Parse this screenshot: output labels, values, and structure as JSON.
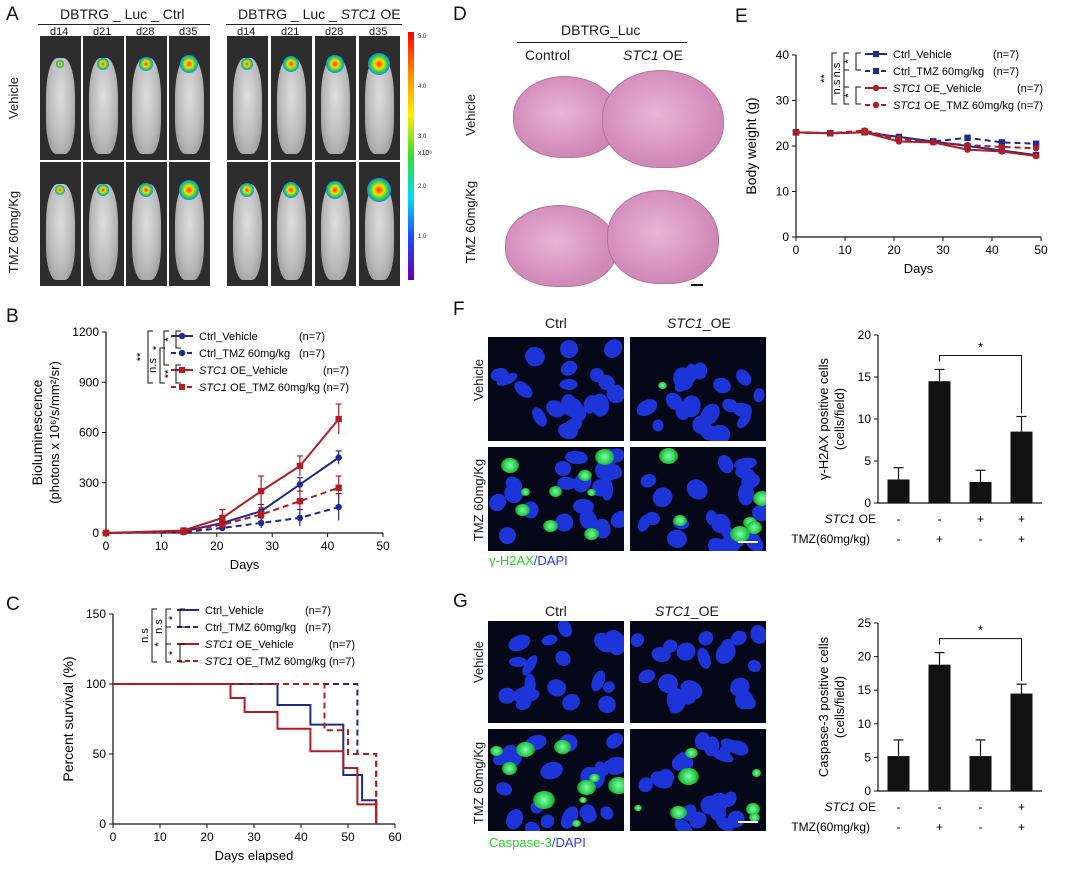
{
  "panels": {
    "A": {
      "label": "A",
      "groups": [
        "DBTRG _ Luc _ Ctrl",
        "DBTRG _ Luc _ ",
        "STC1",
        " OE"
      ],
      "days": [
        "d14",
        "d21",
        "d28",
        "d35",
        "d14",
        "d21",
        "d28",
        "d35"
      ],
      "rows": [
        "Vehicle",
        "TMZ 60mg/Kg"
      ],
      "scale_ticks": [
        "5.0",
        "4.0",
        "3.0",
        "2.0",
        "1.0"
      ],
      "scale_unit": "x10⁶"
    },
    "B": {
      "label": "B"
    },
    "C": {
      "label": "C"
    },
    "D": {
      "label": "D",
      "title": "DBTRG_Luc",
      "cols": [
        "Control",
        "STC1",
        " OE"
      ],
      "rows": [
        "Vehicle",
        "TMZ 60mg/Kg"
      ]
    },
    "E": {
      "label": "E"
    },
    "F": {
      "label": "F",
      "cols": [
        "Ctrl",
        "STC1",
        "_OE"
      ],
      "rows": [
        "Vehicle",
        "TMZ 60mg/Kg"
      ],
      "stain_a": "γ-H2AX",
      "stain_b": "/DAPI"
    },
    "G": {
      "label": "G",
      "cols": [
        "Ctrl",
        "STC1",
        "_OE"
      ],
      "rows": [
        "Vehicle",
        "TMZ 60mg/Kg"
      ],
      "stain_a": "Caspase-3",
      "stain_b": "/DAPI"
    }
  },
  "significance": {
    "dstar": "**",
    "star": "*",
    "ns": "n.s"
  },
  "chart_data": [
    {
      "id": "B",
      "type": "line",
      "xlabel": "Days",
      "ylabel": "Bioluminescence",
      "ylabel2": "(photons x 10⁶/s/mm²/sr)",
      "xlim": [
        0,
        50
      ],
      "ylim": [
        0,
        1200
      ],
      "xticks": [
        "0",
        "10",
        "20",
        "30",
        "40",
        "50"
      ],
      "yticks": [
        "0",
        "300",
        "600",
        "900",
        "1200"
      ],
      "x": [
        0,
        14,
        21,
        28,
        35,
        42
      ],
      "series": [
        {
          "name": "Ctrl_Vehicle",
          "n": "(n=7)",
          "color": "#1f2a8c",
          "dash": false,
          "marker": "circle",
          "values": [
            0,
            10,
            60,
            130,
            290,
            450
          ],
          "err": [
            0,
            5,
            20,
            40,
            40,
            40
          ]
        },
        {
          "name": "Ctrl_TMZ 60mg/kg",
          "n": "(n=7)",
          "color": "#1f2a8c",
          "dash": true,
          "marker": "circle",
          "values": [
            0,
            5,
            30,
            60,
            90,
            155
          ],
          "err": [
            0,
            3,
            15,
            30,
            50,
            80
          ]
        },
        {
          "name": "STC1 OE_Vehicle",
          "n": "(n=7)",
          "color": "#b01e24",
          "dash": false,
          "marker": "square",
          "values": [
            0,
            15,
            90,
            250,
            400,
            680
          ],
          "err": [
            0,
            8,
            50,
            90,
            60,
            90
          ]
        },
        {
          "name": "STC1 OE_TMZ 60mg/kg",
          "n": "(n=7)",
          "color": "#b01e24",
          "dash": true,
          "marker": "square",
          "values": [
            0,
            8,
            50,
            110,
            190,
            270
          ],
          "err": [
            0,
            5,
            25,
            40,
            60,
            70
          ]
        }
      ]
    },
    {
      "id": "C",
      "type": "line",
      "xlabel": "Days elapsed",
      "ylabel": "Percent survival (%)",
      "xlim": [
        0,
        60
      ],
      "ylim": [
        0,
        150
      ],
      "xticks": [
        "0",
        "10",
        "20",
        "30",
        "40",
        "50",
        "60"
      ],
      "yticks": [
        "0",
        "50",
        "100",
        "150"
      ],
      "series": [
        {
          "name": "Ctrl_Vehicle",
          "n": "(n=7)",
          "color": "#1f2a8c",
          "dash": false,
          "x": [
            0,
            35,
            35,
            42,
            42,
            49,
            49,
            53,
            53,
            56,
            56
          ],
          "values": [
            100,
            100,
            85,
            85,
            71,
            71,
            35,
            35,
            17,
            17,
            0
          ]
        },
        {
          "name": "Ctrl_TMZ 60mg/kg",
          "n": "(n=7)",
          "color": "#1f2a8c",
          "dash": true,
          "x": [
            0,
            52,
            52,
            56,
            56
          ],
          "values": [
            100,
            100,
            50,
            50,
            0
          ]
        },
        {
          "name": "STC1 OE_Vehicle",
          "n": "(n=7)",
          "color": "#b01e24",
          "dash": false,
          "x": [
            0,
            25,
            25,
            28,
            28,
            35,
            35,
            42,
            42,
            49,
            49,
            52,
            52,
            56,
            56
          ],
          "values": [
            100,
            100,
            90,
            90,
            80,
            80,
            68,
            68,
            52,
            52,
            40,
            40,
            14,
            14,
            0
          ]
        },
        {
          "name": "STC1 OE_TMZ 60mg/kg",
          "n": "(n=7)",
          "color": "#b01e24",
          "dash": true,
          "x": [
            0,
            45,
            45,
            50,
            50,
            56,
            56
          ],
          "values": [
            100,
            100,
            67,
            67,
            50,
            50,
            0
          ]
        }
      ]
    },
    {
      "id": "E",
      "type": "line",
      "xlabel": "Days",
      "ylabel": "Body weight (g)",
      "xlim": [
        0,
        50
      ],
      "ylim": [
        0,
        40
      ],
      "xticks": [
        "0",
        "10",
        "20",
        "30",
        "40",
        "50"
      ],
      "yticks": [
        "0",
        "10",
        "20",
        "30",
        "40"
      ],
      "x": [
        0,
        7,
        14,
        21,
        28,
        35,
        42,
        49
      ],
      "series": [
        {
          "name": "Ctrl_Vehicle",
          "n": "(n=7)",
          "color": "#1f2a8c",
          "dash": false,
          "marker": "square",
          "values": [
            23,
            22.8,
            23,
            22,
            21,
            20,
            19,
            18
          ]
        },
        {
          "name": "Ctrl_TMZ 60mg/kg",
          "n": "(n=7)",
          "color": "#1f2a8c",
          "dash": true,
          "marker": "square",
          "values": [
            23,
            22.8,
            23.2,
            21.5,
            21,
            21.8,
            20.8,
            20.5
          ]
        },
        {
          "name": "STC1 OE_Vehicle",
          "n": "(n=7)",
          "color": "#b01e24",
          "dash": false,
          "marker": "circle",
          "values": [
            23,
            22.8,
            23,
            21,
            20.8,
            19.2,
            18.8,
            17.8
          ]
        },
        {
          "name": "STC1 OE_TMZ 60mg/kg",
          "n": "(n=7)",
          "color": "#b01e24",
          "dash": true,
          "marker": "circle",
          "values": [
            23,
            22.8,
            23.4,
            21.6,
            20.8,
            20.2,
            19.8,
            19.5
          ]
        }
      ]
    },
    {
      "id": "F",
      "type": "bar",
      "ylabel": "γ-H2AX positive cells",
      "ylabel2": "(cells/field)",
      "ylim": [
        0,
        20
      ],
      "yticks": [
        "0",
        "5",
        "10",
        "15",
        "20"
      ],
      "values": [
        2.8,
        14.5,
        2.5,
        8.5
      ],
      "err": [
        1.4,
        1.4,
        1.4,
        1.8
      ],
      "rowlabels": [
        "STC1 OE",
        "TMZ(60mg/kg)"
      ],
      "row1": [
        "-",
        "-",
        "+",
        "+"
      ],
      "row2": [
        "-",
        "+",
        "-",
        "+"
      ]
    },
    {
      "id": "G",
      "type": "bar",
      "ylabel": "Caspase-3 positive cells",
      "ylabel2": "(cells/field)",
      "ylim": [
        0,
        25
      ],
      "yticks": [
        "0",
        "5",
        "10",
        "15",
        "20",
        "25"
      ],
      "values": [
        5.2,
        18.8,
        5.2,
        14.5
      ],
      "err": [
        2.4,
        1.8,
        2.4,
        1.4
      ],
      "rowlabels": [
        "STC1 OE",
        "TMZ(60mg/kg)"
      ],
      "row1": [
        "-",
        "-",
        "-",
        "+"
      ],
      "row2": [
        "-",
        "+",
        "-",
        "+"
      ]
    }
  ]
}
